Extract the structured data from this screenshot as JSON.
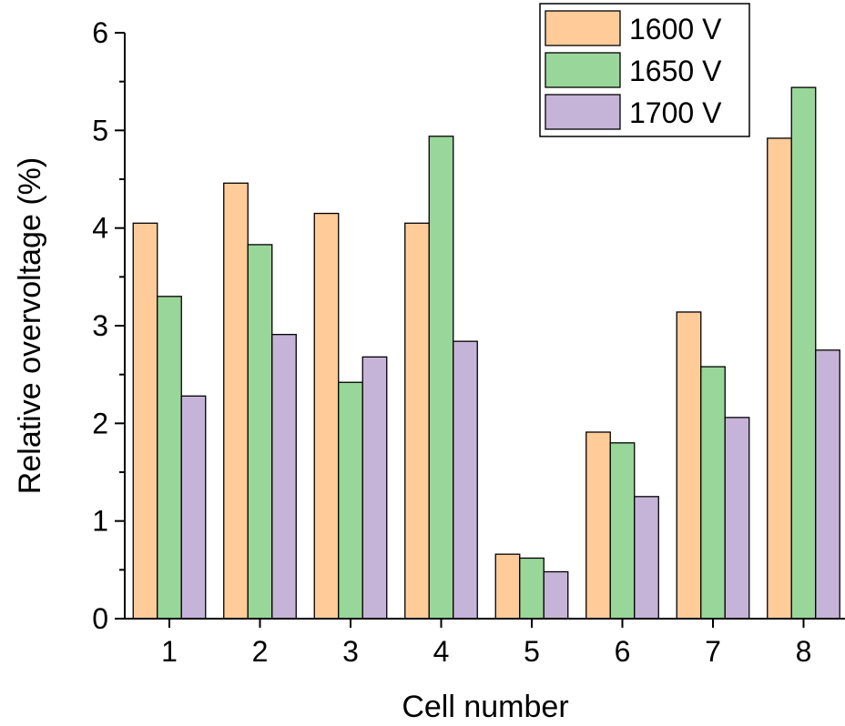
{
  "chart_data": {
    "type": "bar",
    "xlabel": "Cell number",
    "ylabel": "Relative overvoltage (%)",
    "categories": [
      "1",
      "2",
      "3",
      "4",
      "5",
      "6",
      "7",
      "8"
    ],
    "ylim": [
      0,
      6
    ],
    "yticks": [
      "0",
      "1",
      "2",
      "3",
      "4",
      "5",
      "6"
    ],
    "grid": false,
    "legend_position": "top-right",
    "series": [
      {
        "name": "1600 V",
        "color": "#FFCC99",
        "values": [
          4.05,
          4.46,
          4.15,
          4.05,
          0.66,
          1.91,
          3.14,
          4.92
        ]
      },
      {
        "name": "1650 V",
        "color": "#99D699",
        "values": [
          3.3,
          3.83,
          2.42,
          4.94,
          0.62,
          1.8,
          2.58,
          5.44
        ]
      },
      {
        "name": "1700 V",
        "color": "#C6B4D8",
        "values": [
          2.28,
          2.91,
          2.68,
          2.84,
          0.48,
          1.25,
          2.06,
          2.75
        ]
      }
    ]
  }
}
